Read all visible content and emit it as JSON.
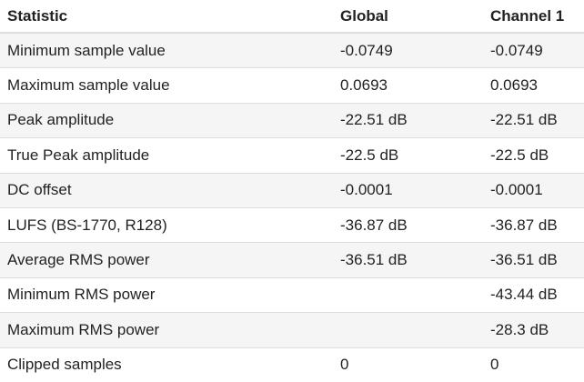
{
  "table": {
    "headers": [
      "Statistic",
      "Global",
      "Channel 1"
    ],
    "rows": [
      [
        "Minimum sample value",
        "-0.0749",
        "-0.0749"
      ],
      [
        "Maximum sample value",
        "0.0693",
        "0.0693"
      ],
      [
        "Peak amplitude",
        "-22.51 dB",
        "-22.51 dB"
      ],
      [
        "True Peak amplitude",
        "-22.5 dB",
        "-22.5 dB"
      ],
      [
        "DC offset",
        "-0.0001",
        "-0.0001"
      ],
      [
        "LUFS (BS-1770, R128)",
        "-36.87 dB",
        "-36.87 dB"
      ],
      [
        "Average RMS power",
        "-36.51 dB",
        "-36.51 dB"
      ],
      [
        "Minimum RMS power",
        "",
        "-43.44 dB"
      ],
      [
        "Maximum RMS power",
        "",
        "-28.3 dB"
      ],
      [
        "Clipped samples",
        "0",
        "0"
      ]
    ]
  },
  "colors": {
    "stripe": "#f5f5f5",
    "border": "#dddddd",
    "text": "#222222"
  }
}
